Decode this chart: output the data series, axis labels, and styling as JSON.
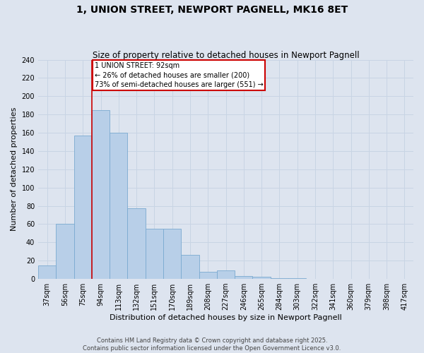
{
  "title": "1, UNION STREET, NEWPORT PAGNELL, MK16 8ET",
  "subtitle": "Size of property relative to detached houses in Newport Pagnell",
  "xlabel": "Distribution of detached houses by size in Newport Pagnell",
  "ylabel": "Number of detached properties",
  "categories": [
    "37sqm",
    "56sqm",
    "75sqm",
    "94sqm",
    "113sqm",
    "132sqm",
    "151sqm",
    "170sqm",
    "189sqm",
    "208sqm",
    "227sqm",
    "246sqm",
    "265sqm",
    "284sqm",
    "303sqm",
    "322sqm",
    "341sqm",
    "360sqm",
    "379sqm",
    "398sqm",
    "417sqm"
  ],
  "values": [
    15,
    60,
    157,
    185,
    160,
    77,
    55,
    55,
    26,
    8,
    9,
    3,
    2,
    1,
    1,
    0,
    0,
    0,
    0,
    0,
    0
  ],
  "bar_color": "#b8cfe8",
  "bar_edge_color": "#7aaad0",
  "vline_x_index": 2.5,
  "annotation_text_line1": "1 UNION STREET: 92sqm",
  "annotation_text_line2": "← 26% of detached houses are smaller (200)",
  "annotation_text_line3": "73% of semi-detached houses are larger (551) →",
  "annotation_box_facecolor": "#ffffff",
  "annotation_box_edgecolor": "#cc0000",
  "vline_color": "#cc0000",
  "ylim": [
    0,
    240
  ],
  "yticks": [
    0,
    20,
    40,
    60,
    80,
    100,
    120,
    140,
    160,
    180,
    200,
    220,
    240
  ],
  "grid_color": "#c8d4e4",
  "background_color": "#dde4ef",
  "footer_line1": "Contains HM Land Registry data © Crown copyright and database right 2025.",
  "footer_line2": "Contains public sector information licensed under the Open Government Licence v3.0.",
  "title_fontsize": 10,
  "subtitle_fontsize": 8.5,
  "axis_label_fontsize": 8,
  "tick_fontsize": 7,
  "annotation_fontsize": 7,
  "footer_fontsize": 6
}
